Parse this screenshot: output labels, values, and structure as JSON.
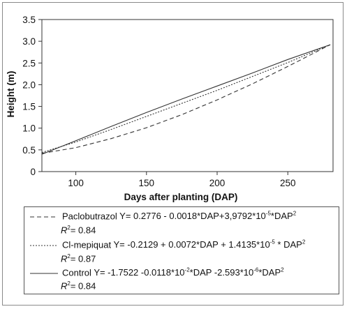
{
  "chart_data": {
    "type": "line",
    "xlabel": "Days after planting (DAP)",
    "ylabel": "Height (m)",
    "xlim": [
      76,
      282
    ],
    "ylim": [
      0,
      3.5
    ],
    "xticks": [
      100,
      150,
      200,
      250
    ],
    "yticks": [
      0,
      0.5,
      1.0,
      1.5,
      2.0,
      2.5,
      3.0,
      3.5
    ],
    "ytick_labels": [
      "0",
      "0.5",
      "1.0",
      "1.5",
      "2.0",
      "2.5",
      "3.0",
      "3.5"
    ],
    "series": [
      {
        "name": "Paclobutrazol",
        "style": "dashed",
        "x": [
          76,
          100,
          125,
          150,
          175,
          200,
          225,
          250,
          280
        ],
        "y": [
          0.42,
          0.55,
          0.76,
          1.01,
          1.31,
          1.65,
          2.02,
          2.42,
          2.92
        ]
      },
      {
        "name": "Cl-mepiquat",
        "style": "dotted",
        "x": [
          76,
          100,
          125,
          150,
          175,
          200,
          225,
          250,
          280
        ],
        "y": [
          0.44,
          0.68,
          0.97,
          1.27,
          1.57,
          1.87,
          2.19,
          2.51,
          2.92
        ]
      },
      {
        "name": "Control",
        "style": "solid",
        "x": [
          76,
          100,
          125,
          150,
          175,
          200,
          225,
          250,
          280
        ],
        "y": [
          0.4,
          0.71,
          1.04,
          1.36,
          1.67,
          1.97,
          2.27,
          2.58,
          2.92
        ]
      }
    ],
    "legend": {
      "position": "bottom",
      "entries": [
        {
          "label": "Paclobutrazol",
          "eq_pre": "Y= 0.2776 - 0.0018*DAP+3,9792*10",
          "eq_exp1": "-5",
          "eq_mid": "*DAP",
          "eq_exp2": "2",
          "r2_pre": "R",
          "r2_sup": "2",
          "r2_post": "= 0.84"
        },
        {
          "label": "Cl-mepiquat",
          "eq_pre": "Y= -0.2129 + 0.0072*DAP + 1.4135*10",
          "eq_exp1": "-5",
          "eq_mid": " * DAP",
          "eq_exp2": "2",
          "r2_pre": "R",
          "r2_sup": "2",
          "r2_post": "= 0.87"
        },
        {
          "label": "Control",
          "eq_pre": "Y= -1.7522 -0.0118*10",
          "eq_exp1": "-2",
          "eq_mid": "*DAP -2.593*10",
          "eq_exp2": "-6",
          "eq_tail": "*DAP",
          "eq_exp3": "2",
          "r2_pre": "R",
          "r2_sup": "2",
          "r2_post": "= 0.84"
        }
      ]
    }
  }
}
